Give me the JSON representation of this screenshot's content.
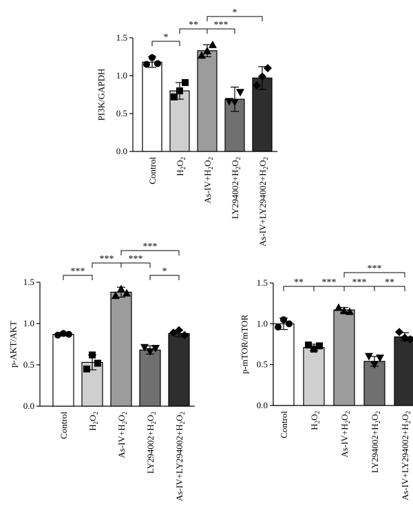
{
  "chart_data": [
    {
      "id": "pi3k",
      "type": "bar",
      "ylabel": "PI3K/GAPDH",
      "ylim": [
        0,
        1.5
      ],
      "yticks": [
        "0.0",
        "0.5",
        "1.0",
        "1.5"
      ],
      "categories": [
        [
          "Control"
        ],
        [
          "H",
          "2",
          "O",
          "2"
        ],
        [
          "As-IV+H",
          "2",
          "O",
          "2"
        ],
        [
          "LY294002+H",
          "2",
          "O",
          "2"
        ],
        [
          "As-IV+LY294002+H",
          "2",
          "O",
          "2"
        ]
      ],
      "category_labels": [
        "Control",
        "H2O2",
        "As-IV+H2O2",
        "LY294002+H2O2",
        "As-IV+LY294002+H2O2"
      ],
      "values": [
        1.18,
        0.8,
        1.33,
        0.69,
        0.97
      ],
      "errors": [
        0.07,
        0.11,
        0.08,
        0.16,
        0.15
      ],
      "points": [
        [
          1.15,
          1.24,
          1.16
        ],
        [
          0.72,
          0.8,
          0.91
        ],
        [
          1.27,
          1.33,
          1.41
        ],
        [
          0.66,
          0.65,
          0.78
        ],
        [
          0.87,
          0.99,
          1.1
        ]
      ],
      "markers": [
        "circle",
        "square",
        "triangle-up",
        "triangle-down",
        "diamond"
      ],
      "bar_colors": [
        "#ffffff",
        "#cfcfcf",
        "#9c9c9c",
        "#707070",
        "#2e2e2e"
      ],
      "significance": [
        {
          "from": 0,
          "to": 1,
          "label": "*",
          "level": 0
        },
        {
          "from": 1,
          "to": 2,
          "label": "**",
          "level": 1
        },
        {
          "from": 2,
          "to": 3,
          "label": "***",
          "level": 1
        },
        {
          "from": 2,
          "to": 4,
          "label": "*",
          "level": 2
        }
      ]
    },
    {
      "id": "pakt",
      "type": "bar",
      "ylabel": "p-AKT/AKT",
      "ylim": [
        0,
        1.5
      ],
      "yticks": [
        "0.0",
        "0.5",
        "1.0",
        "1.5"
      ],
      "categories": [
        [
          "Control"
        ],
        [
          "H",
          "2",
          "O",
          "2"
        ],
        [
          "As-IV+H",
          "2",
          "O",
          "2"
        ],
        [
          "LY294002+H",
          "2",
          "O",
          "2"
        ],
        [
          "As-IV+LY294002+H",
          "2",
          "O",
          "2"
        ]
      ],
      "category_labels": [
        "Control",
        "H2O2",
        "As-IV+H2O2",
        "LY294002+H2O2",
        "As-IV+LY294002+H2O2"
      ],
      "values": [
        0.87,
        0.53,
        1.38,
        0.68,
        0.88
      ],
      "errors": [
        0.02,
        0.09,
        0.06,
        0.05,
        0.04
      ],
      "points": [
        [
          0.86,
          0.88,
          0.87
        ],
        [
          0.45,
          0.62,
          0.52
        ],
        [
          1.34,
          1.42,
          1.37
        ],
        [
          0.71,
          0.66,
          0.7
        ],
        [
          0.89,
          0.92,
          0.86
        ]
      ],
      "markers": [
        "circle",
        "square",
        "triangle-up",
        "triangle-down",
        "diamond"
      ],
      "bar_colors": [
        "#ffffff",
        "#cfcfcf",
        "#9c9c9c",
        "#707070",
        "#2e2e2e"
      ],
      "significance": [
        {
          "from": 0,
          "to": 1,
          "label": "***",
          "level": 0
        },
        {
          "from": 1,
          "to": 2,
          "label": "***",
          "level": 1
        },
        {
          "from": 2,
          "to": 3,
          "label": "***",
          "level": 1
        },
        {
          "from": 3,
          "to": 4,
          "label": "*",
          "level": 0
        },
        {
          "from": 2,
          "to": 4,
          "label": "***",
          "level": 2
        }
      ]
    },
    {
      "id": "pmtor",
      "type": "bar",
      "ylabel": "p-mTOR/mTOR",
      "ylim": [
        0,
        1.5
      ],
      "yticks": [
        "0.0",
        "0.5",
        "1.0",
        "1.5"
      ],
      "categories": [
        [
          "Control"
        ],
        [
          "H",
          "2",
          "O",
          "2"
        ],
        [
          "As-IV+H",
          "2",
          "O",
          "2"
        ],
        [
          "LY294002+H",
          "2",
          "O",
          "2"
        ],
        [
          "As-IV+LY294002+H",
          "2",
          "O",
          "2"
        ]
      ],
      "category_labels": [
        "Control",
        "H2O2",
        "As-IV+H2O2",
        "LY294002+H2O2",
        "As-IV+LY294002+H2O2"
      ],
      "values": [
        1.0,
        0.71,
        1.17,
        0.54,
        0.84
      ],
      "errors": [
        0.07,
        0.04,
        0.03,
        0.06,
        0.05
      ],
      "points": [
        [
          0.96,
          1.05,
          1.0
        ],
        [
          0.74,
          0.69,
          0.73
        ],
        [
          1.2,
          1.16,
          1.15
        ],
        [
          0.6,
          0.5,
          0.58
        ],
        [
          0.9,
          0.83,
          0.81
        ]
      ],
      "markers": [
        "circle",
        "square",
        "triangle-up",
        "triangle-down",
        "diamond"
      ],
      "bar_colors": [
        "#ffffff",
        "#cfcfcf",
        "#9c9c9c",
        "#707070",
        "#2e2e2e"
      ],
      "significance": [
        {
          "from": 0,
          "to": 1,
          "label": "**",
          "level": 0
        },
        {
          "from": 1,
          "to": 2,
          "label": "***",
          "level": 0
        },
        {
          "from": 2,
          "to": 3,
          "label": "***",
          "level": 0
        },
        {
          "from": 3,
          "to": 4,
          "label": "**",
          "level": 0
        },
        {
          "from": 2,
          "to": 4,
          "label": "***",
          "level": 1
        }
      ]
    }
  ]
}
